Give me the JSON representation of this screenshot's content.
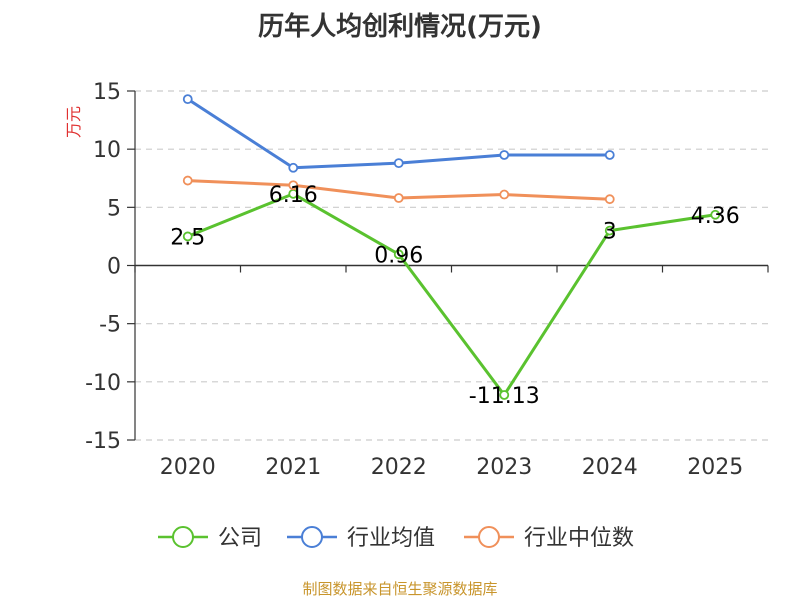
{
  "chart_data": {
    "type": "line",
    "title": "历年人均创利情况(万元)",
    "ylabel": "万元",
    "xlabel": "",
    "categories": [
      "2020",
      "2021",
      "2022",
      "2023",
      "2024",
      "2025"
    ],
    "ylim": [
      -15,
      15
    ],
    "yticks": [
      15,
      10,
      5,
      0,
      -5,
      -10,
      -15
    ],
    "grid": true,
    "legend_position": "bottom",
    "series": [
      {
        "name": "公司",
        "color": "#5ac22f",
        "values": [
          2.5,
          6.16,
          0.96,
          -11.13,
          3,
          4.36
        ],
        "labels": [
          "2.5",
          "6.16",
          "0.96",
          "-11.13",
          "3",
          "4.36"
        ]
      },
      {
        "name": "行业均值",
        "color": "#4a7fd6",
        "values": [
          14.3,
          8.4,
          8.8,
          9.5,
          9.5,
          null
        ]
      },
      {
        "name": "行业中位数",
        "color": "#f0905a",
        "values": [
          7.3,
          6.9,
          5.8,
          6.1,
          5.7,
          null
        ]
      }
    ]
  },
  "source_note": "制图数据来自恒生聚源数据库"
}
